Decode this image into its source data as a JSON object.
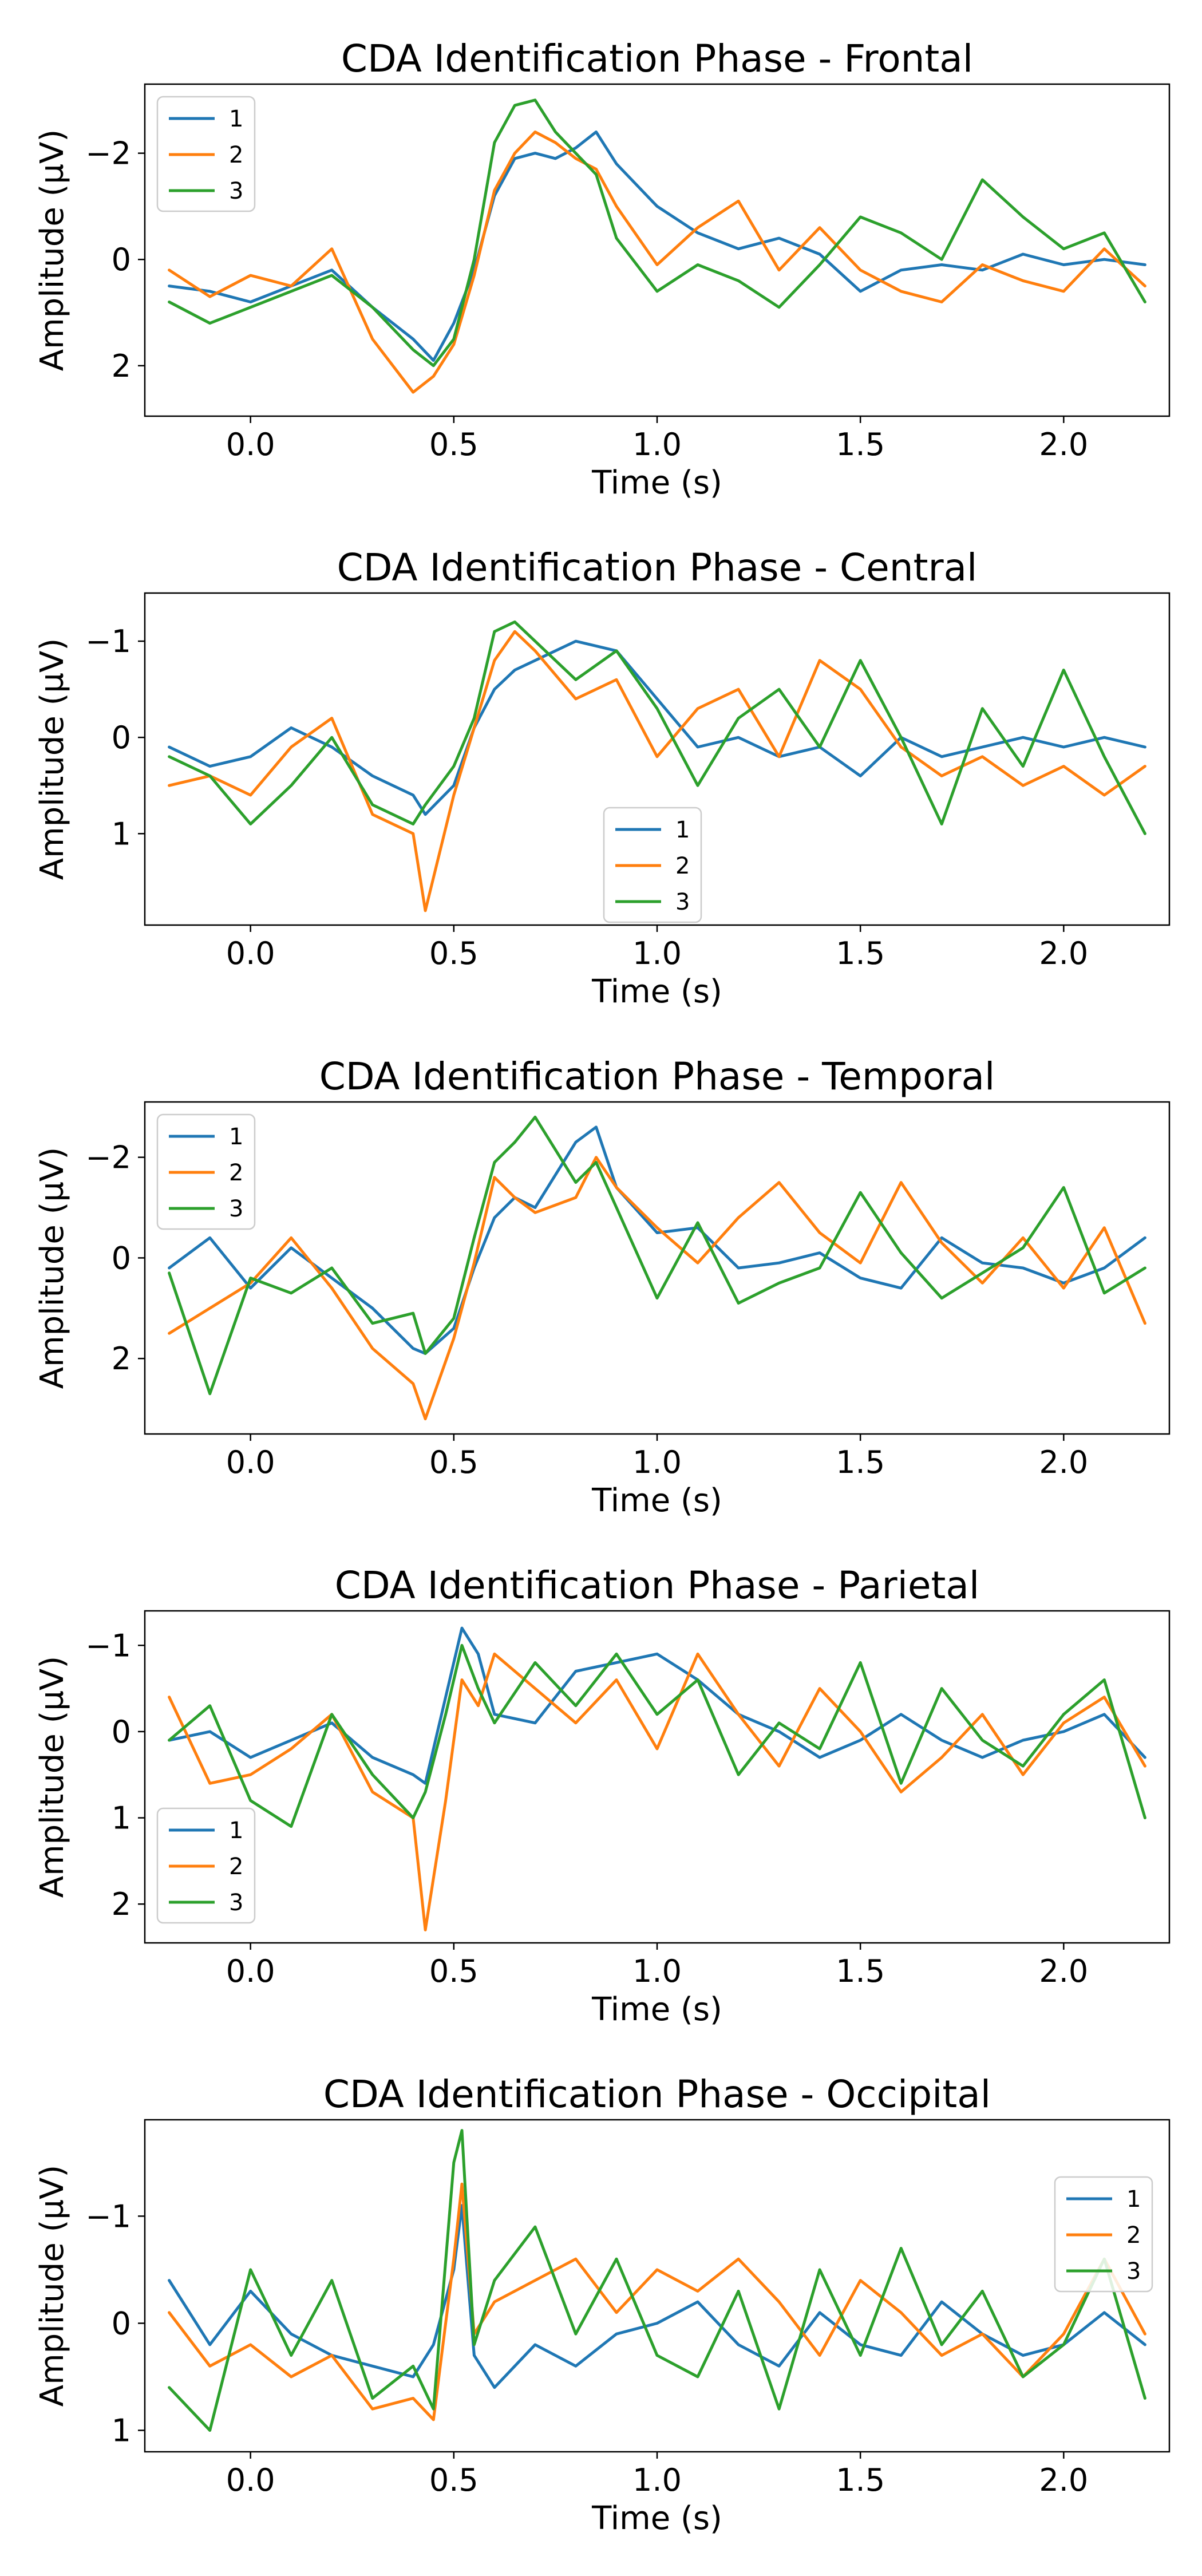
{
  "chart_data": [
    {
      "type": "line",
      "title": "CDA Identification Phase - Frontal",
      "xlabel": "Time (s)",
      "ylabel": "Amplitude (µV)",
      "xlim": [
        -0.26,
        2.26
      ],
      "ylim": [
        2.95,
        -3.3
      ],
      "y_inverted": true,
      "xticks": [
        0.0,
        0.5,
        1.0,
        1.5,
        2.0
      ],
      "xtick_labels": [
        "0.0",
        "0.5",
        "1.0",
        "1.5",
        "2.0"
      ],
      "yticks": [
        -2,
        0,
        2
      ],
      "ytick_labels": [
        "−2",
        "0",
        "2"
      ],
      "grid": false,
      "legend": {
        "position": "top-left",
        "entries": [
          "1",
          "2",
          "3"
        ]
      },
      "x": [
        -0.2,
        -0.1,
        0.0,
        0.1,
        0.2,
        0.3,
        0.4,
        0.45,
        0.5,
        0.55,
        0.6,
        0.65,
        0.7,
        0.75,
        0.8,
        0.85,
        0.9,
        1.0,
        1.1,
        1.2,
        1.3,
        1.4,
        1.5,
        1.6,
        1.7,
        1.8,
        1.9,
        2.0,
        2.1,
        2.2
      ],
      "series": [
        {
          "name": "1",
          "color": "#1f77b4",
          "values": [
            0.5,
            0.6,
            0.8,
            0.5,
            0.2,
            0.9,
            1.5,
            1.9,
            1.2,
            0.2,
            -1.2,
            -1.9,
            -2.0,
            -1.9,
            -2.1,
            -2.4,
            -1.8,
            -1.0,
            -0.5,
            -0.2,
            -0.4,
            -0.1,
            0.6,
            0.2,
            0.1,
            0.2,
            -0.1,
            0.1,
            0.0,
            0.1
          ]
        },
        {
          "name": "2",
          "color": "#ff7f0e",
          "values": [
            0.2,
            0.7,
            0.3,
            0.5,
            -0.2,
            1.5,
            2.5,
            2.2,
            1.6,
            0.3,
            -1.3,
            -2.0,
            -2.4,
            -2.2,
            -1.9,
            -1.7,
            -1.0,
            0.1,
            -0.6,
            -1.1,
            0.2,
            -0.6,
            0.2,
            0.6,
            0.8,
            0.1,
            0.4,
            0.6,
            -0.2,
            0.5
          ]
        },
        {
          "name": "3",
          "color": "#2ca02c",
          "values": [
            0.8,
            1.2,
            0.9,
            0.6,
            0.3,
            0.9,
            1.7,
            2.0,
            1.5,
            0.0,
            -2.2,
            -2.9,
            -3.0,
            -2.4,
            -2.0,
            -1.6,
            -0.4,
            0.6,
            0.1,
            0.4,
            0.9,
            0.1,
            -0.8,
            -0.5,
            0.0,
            -1.5,
            -0.8,
            -0.2,
            -0.5,
            0.8
          ]
        }
      ]
    },
    {
      "type": "line",
      "title": "CDA Identification Phase - Central",
      "xlabel": "Time (s)",
      "ylabel": "Amplitude (µV)",
      "xlim": [
        -0.26,
        2.26
      ],
      "ylim": [
        1.95,
        -1.5
      ],
      "y_inverted": true,
      "xticks": [
        0.0,
        0.5,
        1.0,
        1.5,
        2.0
      ],
      "xtick_labels": [
        "0.0",
        "0.5",
        "1.0",
        "1.5",
        "2.0"
      ],
      "yticks": [
        -1,
        0,
        1
      ],
      "ytick_labels": [
        "−1",
        "0",
        "1"
      ],
      "grid": false,
      "legend": {
        "position": "bottom-center",
        "entries": [
          "1",
          "2",
          "3"
        ]
      },
      "x": [
        -0.2,
        -0.1,
        0.0,
        0.1,
        0.2,
        0.3,
        0.4,
        0.43,
        0.5,
        0.55,
        0.6,
        0.65,
        0.7,
        0.8,
        0.9,
        1.0,
        1.1,
        1.2,
        1.3,
        1.4,
        1.5,
        1.6,
        1.7,
        1.8,
        1.9,
        2.0,
        2.1,
        2.2
      ],
      "series": [
        {
          "name": "1",
          "color": "#1f77b4",
          "values": [
            0.1,
            0.3,
            0.2,
            -0.1,
            0.1,
            0.4,
            0.6,
            0.8,
            0.5,
            -0.1,
            -0.5,
            -0.7,
            -0.8,
            -1.0,
            -0.9,
            -0.4,
            0.1,
            0.0,
            0.2,
            0.1,
            0.4,
            0.0,
            0.2,
            0.1,
            0.0,
            0.1,
            0.0,
            0.1
          ]
        },
        {
          "name": "2",
          "color": "#ff7f0e",
          "values": [
            0.5,
            0.4,
            0.6,
            0.1,
            -0.2,
            0.8,
            1.0,
            1.8,
            0.6,
            -0.1,
            -0.8,
            -1.1,
            -0.9,
            -0.4,
            -0.6,
            0.2,
            -0.3,
            -0.5,
            0.2,
            -0.8,
            -0.5,
            0.1,
            0.4,
            0.2,
            0.5,
            0.3,
            0.6,
            0.3
          ]
        },
        {
          "name": "3",
          "color": "#2ca02c",
          "values": [
            0.2,
            0.4,
            0.9,
            0.5,
            0.0,
            0.7,
            0.9,
            0.7,
            0.3,
            -0.2,
            -1.1,
            -1.2,
            -1.0,
            -0.6,
            -0.9,
            -0.3,
            0.5,
            -0.2,
            -0.5,
            0.1,
            -0.8,
            0.0,
            0.9,
            -0.3,
            0.3,
            -0.7,
            0.2,
            1.0
          ]
        }
      ]
    },
    {
      "type": "line",
      "title": "CDA Identification Phase - Temporal",
      "xlabel": "Time (s)",
      "ylabel": "Amplitude (µV)",
      "xlim": [
        -0.26,
        2.26
      ],
      "ylim": [
        3.5,
        -3.1
      ],
      "y_inverted": true,
      "xticks": [
        0.0,
        0.5,
        1.0,
        1.5,
        2.0
      ],
      "xtick_labels": [
        "0.0",
        "0.5",
        "1.0",
        "1.5",
        "2.0"
      ],
      "yticks": [
        -2,
        0,
        2
      ],
      "ytick_labels": [
        "−2",
        "0",
        "2"
      ],
      "grid": false,
      "legend": {
        "position": "top-left",
        "entries": [
          "1",
          "2",
          "3"
        ]
      },
      "x": [
        -0.2,
        -0.1,
        0.0,
        0.1,
        0.2,
        0.3,
        0.4,
        0.43,
        0.5,
        0.55,
        0.6,
        0.65,
        0.7,
        0.8,
        0.85,
        0.9,
        1.0,
        1.1,
        1.2,
        1.3,
        1.4,
        1.5,
        1.6,
        1.7,
        1.8,
        1.9,
        2.0,
        2.1,
        2.2
      ],
      "series": [
        {
          "name": "1",
          "color": "#1f77b4",
          "values": [
            0.2,
            -0.4,
            0.6,
            -0.2,
            0.4,
            1.0,
            1.8,
            1.9,
            1.4,
            0.2,
            -0.8,
            -1.2,
            -1.0,
            -2.3,
            -2.6,
            -1.4,
            -0.5,
            -0.6,
            0.2,
            0.1,
            -0.1,
            0.4,
            0.6,
            -0.4,
            0.1,
            0.2,
            0.5,
            0.2,
            -0.4
          ]
        },
        {
          "name": "2",
          "color": "#ff7f0e",
          "values": [
            1.5,
            1.0,
            0.5,
            -0.4,
            0.6,
            1.8,
            2.5,
            3.2,
            1.6,
            0.1,
            -1.6,
            -1.2,
            -0.9,
            -1.2,
            -2.0,
            -1.4,
            -0.6,
            0.1,
            -0.8,
            -1.5,
            -0.5,
            0.1,
            -1.5,
            -0.3,
            0.5,
            -0.4,
            0.6,
            -0.6,
            1.3
          ]
        },
        {
          "name": "3",
          "color": "#2ca02c",
          "values": [
            0.3,
            2.7,
            0.4,
            0.7,
            0.2,
            1.3,
            1.1,
            1.9,
            1.2,
            -0.4,
            -1.9,
            -2.3,
            -2.8,
            -1.5,
            -1.9,
            -1.0,
            0.8,
            -0.7,
            0.9,
            0.5,
            0.2,
            -1.3,
            -0.1,
            0.8,
            0.3,
            -0.2,
            -1.4,
            0.7,
            0.2
          ]
        }
      ]
    },
    {
      "type": "line",
      "title": "CDA Identification Phase - Parietal",
      "xlabel": "Time (s)",
      "ylabel": "Amplitude (µV)",
      "xlim": [
        -0.26,
        2.26
      ],
      "ylim": [
        2.45,
        -1.4
      ],
      "y_inverted": true,
      "xticks": [
        0.0,
        0.5,
        1.0,
        1.5,
        2.0
      ],
      "xtick_labels": [
        "0.0",
        "0.5",
        "1.0",
        "1.5",
        "2.0"
      ],
      "yticks": [
        -1,
        0,
        1,
        2
      ],
      "ytick_labels": [
        "−1",
        "0",
        "1",
        "2"
      ],
      "grid": false,
      "legend": {
        "position": "bottom-left",
        "entries": [
          "1",
          "2",
          "3"
        ]
      },
      "x": [
        -0.2,
        -0.1,
        0.0,
        0.1,
        0.2,
        0.3,
        0.4,
        0.43,
        0.48,
        0.52,
        0.56,
        0.6,
        0.7,
        0.8,
        0.9,
        1.0,
        1.1,
        1.2,
        1.3,
        1.4,
        1.5,
        1.6,
        1.7,
        1.8,
        1.9,
        2.0,
        2.1,
        2.2
      ],
      "series": [
        {
          "name": "1",
          "color": "#1f77b4",
          "values": [
            0.1,
            0.0,
            0.3,
            0.1,
            -0.1,
            0.3,
            0.5,
            0.6,
            -0.4,
            -1.2,
            -0.9,
            -0.2,
            -0.1,
            -0.7,
            -0.8,
            -0.9,
            -0.6,
            -0.2,
            0.0,
            0.3,
            0.1,
            -0.2,
            0.1,
            0.3,
            0.1,
            0.0,
            -0.2,
            0.3
          ]
        },
        {
          "name": "2",
          "color": "#ff7f0e",
          "values": [
            -0.4,
            0.6,
            0.5,
            0.2,
            -0.2,
            0.7,
            1.0,
            2.3,
            0.8,
            -0.6,
            -0.3,
            -0.9,
            -0.5,
            -0.1,
            -0.6,
            0.2,
            -0.9,
            -0.2,
            0.4,
            -0.5,
            0.0,
            0.7,
            0.3,
            -0.2,
            0.5,
            -0.1,
            -0.4,
            0.4
          ]
        },
        {
          "name": "3",
          "color": "#2ca02c",
          "values": [
            0.1,
            -0.3,
            0.8,
            1.1,
            -0.2,
            0.5,
            1.0,
            0.7,
            -0.2,
            -1.0,
            -0.5,
            -0.1,
            -0.8,
            -0.3,
            -0.9,
            -0.2,
            -0.6,
            0.5,
            -0.1,
            0.2,
            -0.8,
            0.6,
            -0.5,
            0.1,
            0.4,
            -0.2,
            -0.6,
            1.0
          ]
        }
      ]
    },
    {
      "type": "line",
      "title": "CDA Identification Phase - Occipital",
      "xlabel": "Time (s)",
      "ylabel": "Amplitude (µV)",
      "xlim": [
        -0.26,
        2.26
      ],
      "ylim": [
        1.2,
        -1.9
      ],
      "y_inverted": true,
      "xticks": [
        0.0,
        0.5,
        1.0,
        1.5,
        2.0
      ],
      "xtick_labels": [
        "0.0",
        "0.5",
        "1.0",
        "1.5",
        "2.0"
      ],
      "yticks": [
        -1,
        0,
        1
      ],
      "ytick_labels": [
        "−1",
        "0",
        "1"
      ],
      "grid": false,
      "legend": {
        "position": "top-right",
        "entries": [
          "1",
          "2",
          "3"
        ]
      },
      "x": [
        -0.2,
        -0.1,
        0.0,
        0.1,
        0.2,
        0.3,
        0.4,
        0.45,
        0.5,
        0.52,
        0.55,
        0.6,
        0.7,
        0.8,
        0.9,
        1.0,
        1.1,
        1.2,
        1.3,
        1.4,
        1.5,
        1.6,
        1.7,
        1.8,
        1.9,
        2.0,
        2.1,
        2.2
      ],
      "series": [
        {
          "name": "1",
          "color": "#1f77b4",
          "values": [
            -0.4,
            0.2,
            -0.3,
            0.1,
            0.3,
            0.4,
            0.5,
            0.2,
            -0.5,
            -1.1,
            0.3,
            0.6,
            0.2,
            0.4,
            0.1,
            0.0,
            -0.2,
            0.2,
            0.4,
            -0.1,
            0.2,
            0.3,
            -0.2,
            0.1,
            0.3,
            0.2,
            -0.1,
            0.2
          ]
        },
        {
          "name": "2",
          "color": "#ff7f0e",
          "values": [
            -0.1,
            0.4,
            0.2,
            0.5,
            0.3,
            0.8,
            0.7,
            0.9,
            -0.6,
            -1.3,
            0.1,
            -0.2,
            -0.4,
            -0.6,
            -0.1,
            -0.5,
            -0.3,
            -0.6,
            -0.2,
            0.3,
            -0.4,
            -0.1,
            0.3,
            0.1,
            0.5,
            0.1,
            -0.6,
            0.1
          ]
        },
        {
          "name": "3",
          "color": "#2ca02c",
          "values": [
            0.6,
            1.0,
            -0.5,
            0.3,
            -0.4,
            0.7,
            0.4,
            0.8,
            -1.5,
            -1.8,
            0.2,
            -0.4,
            -0.9,
            0.1,
            -0.6,
            0.3,
            0.5,
            -0.3,
            0.8,
            -0.5,
            0.3,
            -0.7,
            0.2,
            -0.3,
            0.5,
            0.2,
            -0.6,
            0.7
          ]
        }
      ]
    }
  ]
}
